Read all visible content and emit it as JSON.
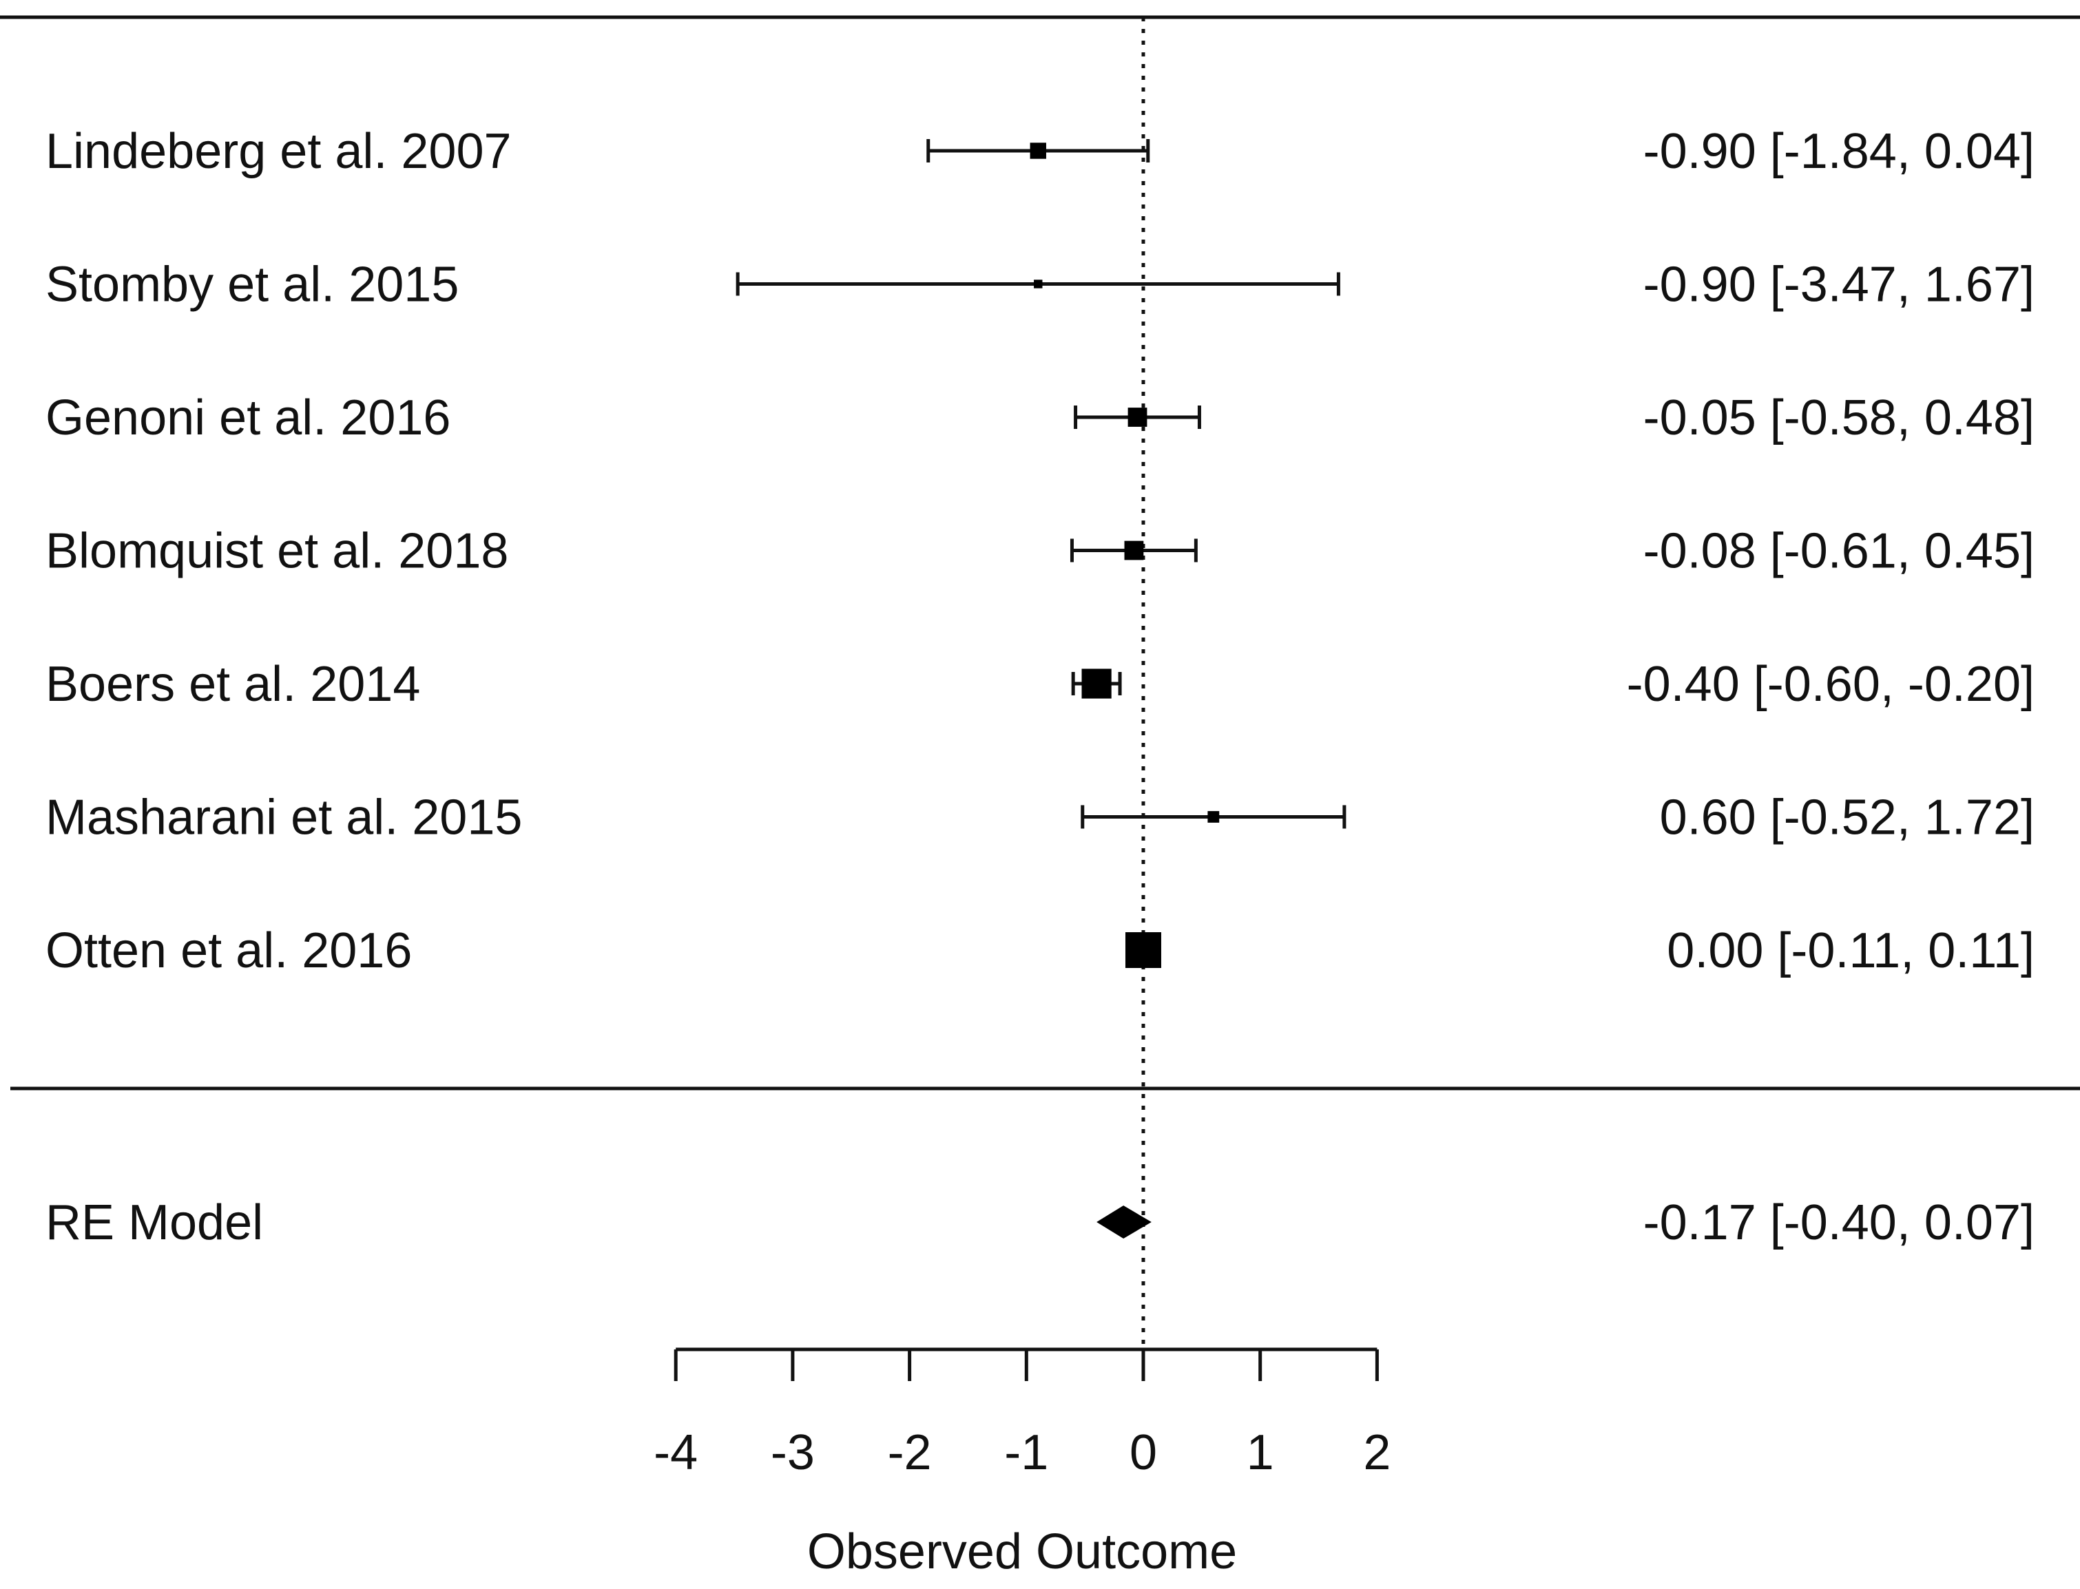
{
  "chart_data": {
    "type": "forest",
    "xlabel": "Observed Outcome",
    "xlim": [
      -4,
      2
    ],
    "xticks": [
      -4,
      -3,
      -2,
      -1,
      0,
      1,
      2
    ],
    "xtick_labels": [
      "-4",
      "-3",
      "-2",
      "-1",
      "0",
      "1",
      "2"
    ],
    "reference_line": 0,
    "studies": [
      {
        "label": "Lindeberg et al. 2007",
        "estimate": -0.9,
        "ci_low": -1.84,
        "ci_high": 0.04,
        "text": "-0.90 [-1.84,  0.04]",
        "weight": 0.35
      },
      {
        "label": "Stomby et al. 2015",
        "estimate": -0.9,
        "ci_low": -3.47,
        "ci_high": 1.67,
        "text": "-0.90 [-3.47,  1.67]",
        "weight": 0.1
      },
      {
        "label": "Genoni et al.  2016",
        "estimate": -0.05,
        "ci_low": -0.58,
        "ci_high": 0.48,
        "text": "-0.05 [-0.58,  0.48]",
        "weight": 0.45
      },
      {
        "label": "Blomquist et al.  2018",
        "estimate": -0.08,
        "ci_low": -0.61,
        "ci_high": 0.45,
        "text": "-0.08 [-0.61,  0.45]",
        "weight": 0.45
      },
      {
        "label": "Boers et al.  2014",
        "estimate": -0.4,
        "ci_low": -0.6,
        "ci_high": -0.2,
        "text": "-0.40 [-0.60, -0.20]",
        "weight": 0.8
      },
      {
        "label": "Masharani et al. 2015",
        "estimate": 0.6,
        "ci_low": -0.52,
        "ci_high": 1.72,
        "text": "0.60 [-0.52,  1.72]",
        "weight": 0.2
      },
      {
        "label": "Otten et al. 2016",
        "estimate": 0.0,
        "ci_low": -0.11,
        "ci_high": 0.11,
        "text": "0.00 [-0.11,  0.11]",
        "weight": 1.0
      }
    ],
    "summary": {
      "label": "RE Model",
      "estimate": -0.17,
      "ci_low": -0.4,
      "ci_high": 0.07,
      "text": "-0.17 [-0.40,  0.07]"
    }
  }
}
